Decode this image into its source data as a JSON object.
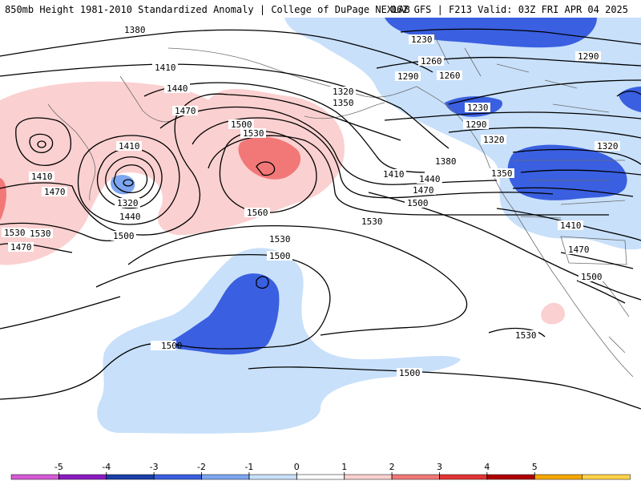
{
  "header": {
    "title_left": "850mb Height 1981-2010 Standardized Anomaly | College of DuPage NEXLAB",
    "title_right": "06Z GFS | F213 Valid: 03Z FRI APR 04 2025"
  },
  "colorbar": {
    "ticks": [
      "-5",
      "-4",
      "-3",
      "-2",
      "-1",
      "0",
      "1",
      "2",
      "3",
      "4",
      "5"
    ],
    "colors": [
      "#d65ad6",
      "#8a1bc2",
      "#1a3fa8",
      "#3a5fe0",
      "#7da6f0",
      "#c8e0fa",
      "#ffffff",
      "#fbd0d0",
      "#f27878",
      "#e23434",
      "#b00000",
      "#f5a800",
      "#ffd24a"
    ]
  },
  "contour_labels": [
    {
      "text": "1380"
    },
    {
      "text": "1410"
    },
    {
      "text": "1440"
    },
    {
      "text": "1470"
    },
    {
      "text": "1500"
    },
    {
      "text": "1530"
    },
    {
      "text": "1560"
    },
    {
      "text": "1320"
    },
    {
      "text": "1350"
    },
    {
      "text": "1290"
    },
    {
      "text": "1260"
    },
    {
      "text": "1230"
    },
    {
      "text": "1230"
    },
    {
      "text": "1290"
    },
    {
      "text": "1260"
    },
    {
      "text": "1290"
    },
    {
      "text": "1320"
    },
    {
      "text": "1320"
    },
    {
      "text": "1350"
    },
    {
      "text": "1380"
    },
    {
      "text": "1410"
    },
    {
      "text": "1440"
    },
    {
      "text": "1470"
    },
    {
      "text": "1500"
    },
    {
      "text": "1530"
    },
    {
      "text": "1410"
    },
    {
      "text": "1470"
    },
    {
      "text": "1500"
    },
    {
      "text": "1530"
    },
    {
      "text": "1500"
    },
    {
      "text": "1530"
    },
    {
      "text": "1410"
    },
    {
      "text": "1470"
    },
    {
      "text": "1530"
    },
    {
      "text": "1320"
    },
    {
      "text": "1440"
    },
    {
      "text": "1500"
    },
    {
      "text": "1410"
    },
    {
      "text": "1470"
    },
    {
      "text": "1500"
    },
    {
      "text": "1500"
    },
    {
      "text": "1530"
    }
  ]
}
